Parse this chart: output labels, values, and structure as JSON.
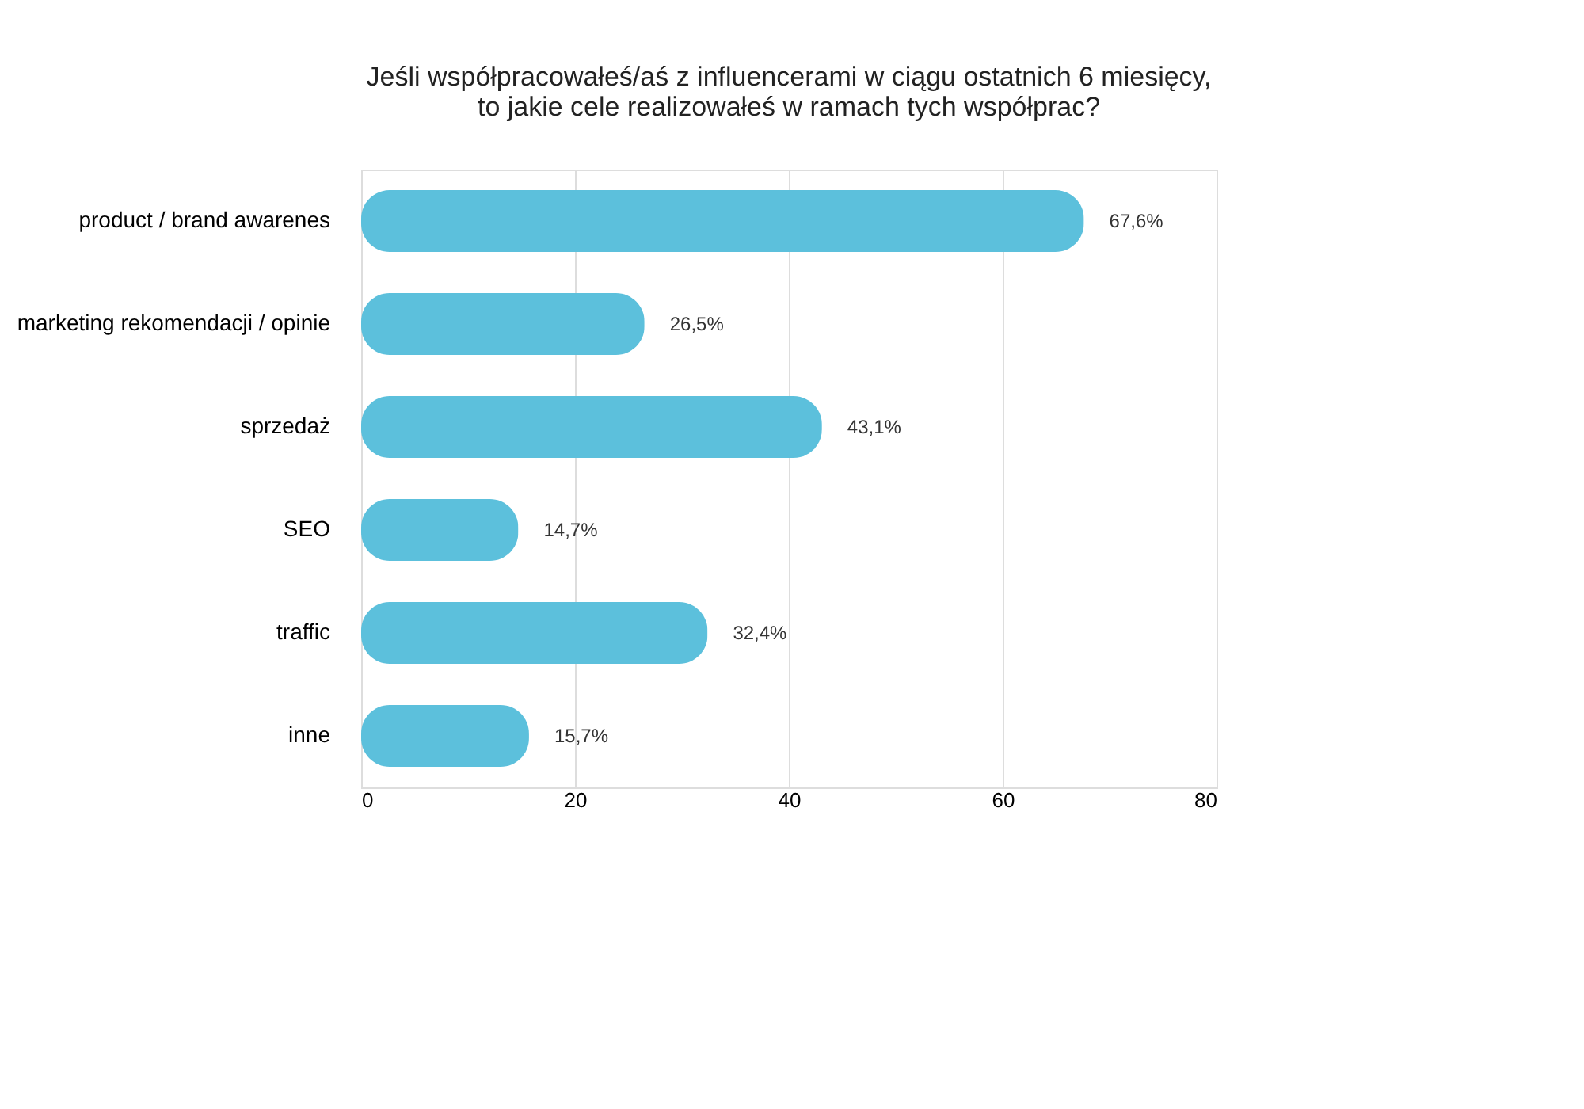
{
  "chart_data": {
    "type": "bar",
    "orientation": "horizontal",
    "title": "Jeśli współpracowałeś/aś z influencerami w ciągu ostatnich 6 miesięcy,\nto jakie cele realizowałeś w ramach tych współprac?",
    "categories": [
      "product / brand awarenes",
      "marketing rekomendacji / opinie",
      "sprzedaż",
      "SEO",
      "traffic",
      "inne"
    ],
    "values": [
      67.6,
      26.5,
      43.1,
      14.7,
      32.4,
      15.7
    ],
    "value_labels": [
      "67,6%",
      "26,5%",
      "43,1%",
      "14,7%",
      "32,4%",
      "15,7%"
    ],
    "color": "#5cc0dc",
    "xlim": [
      0,
      80
    ],
    "xticks": [
      0,
      20,
      40,
      60,
      80
    ],
    "grid": "x"
  }
}
